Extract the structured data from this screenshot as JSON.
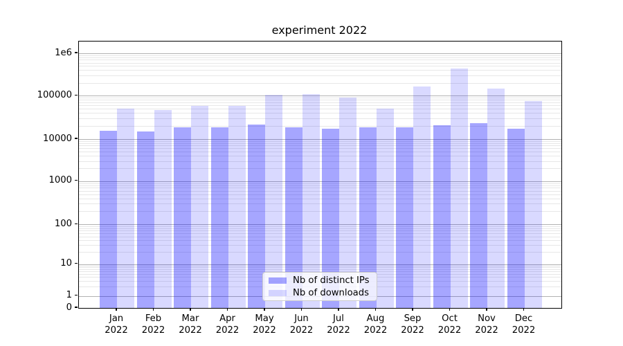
{
  "chart_data": {
    "type": "bar",
    "title": "experiment 2022",
    "categories": [
      "Jan",
      "Feb",
      "Mar",
      "Apr",
      "May",
      "Jun",
      "Jul",
      "Aug",
      "Sep",
      "Oct",
      "Nov",
      "Dec"
    ],
    "x_tick_year": "2022",
    "series": [
      {
        "name": "Nb of distinct IPs",
        "base_color": "#0000FF",
        "alpha": 0.35,
        "fill": "rgba(0,0,255,0.35)",
        "values": [
          15800,
          15100,
          19000,
          19000,
          21500,
          18500,
          17500,
          18900,
          18700,
          20500,
          23000,
          17600
        ]
      },
      {
        "name": "Nb of downloads",
        "base_color": "#0000FF",
        "alpha": 0.15,
        "fill": "rgba(0,0,255,0.15)",
        "values": [
          51000,
          46500,
          58500,
          57500,
          105000,
          109000,
          91000,
          50400,
          164000,
          441000,
          145000,
          75500
        ]
      }
    ],
    "y_axis": {
      "scale": "symlog",
      "ticks": [
        {
          "label": "0",
          "value": 0
        },
        {
          "label": "1",
          "value": 1
        },
        {
          "label": "10",
          "value": 10
        },
        {
          "label": "100",
          "value": 100
        },
        {
          "label": "1000",
          "value": 1000
        },
        {
          "label": "10000",
          "value": 10000
        },
        {
          "label": "100000",
          "value": 100000
        },
        {
          "label": "1e6",
          "value": 1000000
        }
      ]
    },
    "grid": {
      "major_color": "#B2B2B2",
      "minor_color": "#E7E7E7"
    },
    "legend": {
      "position": "lower-center"
    }
  }
}
